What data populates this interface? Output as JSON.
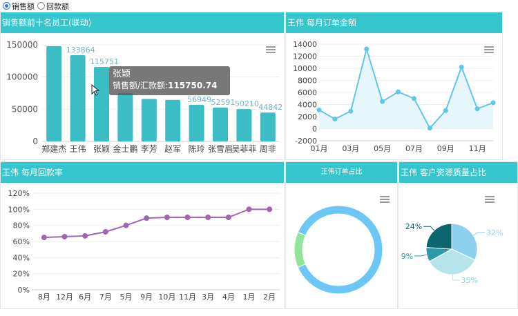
{
  "radios": [
    {
      "label": "销售额",
      "selected": true
    },
    {
      "label": "回款额",
      "selected": false
    }
  ],
  "panels": {
    "top_employees": {
      "title": "销售额前十名员工(联动)"
    },
    "monthly_orders": {
      "title": "王伟 每月订单金额"
    },
    "monthly_collection": {
      "title": "王伟 每月回款率"
    },
    "order_share": {
      "title": "王伟订单占比"
    },
    "customer_quality": {
      "title": "王伟 客户资源质量占比"
    }
  },
  "tooltip": {
    "name": "张颖",
    "label": "销售额/汇款额:",
    "value": "115750.74"
  },
  "icons": {
    "menu": "hamburger-menu-icon",
    "cursor": "mouse-pointer-icon"
  },
  "colors": {
    "header": "#34c6cc",
    "bar": "#3cbcc4",
    "line": "#5fc8e8",
    "rate": "#a066b0"
  },
  "chart_data": [
    {
      "type": "bar",
      "categories": [
        "郑建杰",
        "王伟",
        "张颖",
        "金士鹏",
        "李芳",
        "赵军",
        "陈玲",
        "张雪眉",
        "吴菲菲",
        "周非"
      ],
      "values": [
        148000,
        133864,
        115751,
        75000,
        66000,
        64500,
        56949,
        52591,
        50210,
        44842
      ],
      "data_labels": [
        "",
        "133864",
        "115751",
        "",
        "",
        "",
        "56949",
        "52591",
        "50210",
        "44842"
      ],
      "y_ticks": [
        "150000",
        "100000",
        "50000",
        "0"
      ],
      "ylim": [
        0,
        150000
      ]
    },
    {
      "type": "area",
      "x": [
        "01月",
        "02月",
        "03月",
        "04月",
        "05月",
        "06月",
        "07月",
        "08月",
        "09月",
        "10月",
        "11月",
        "12月"
      ],
      "x_tick_labels": [
        "01月",
        "03月",
        "05月",
        "07月",
        "09月",
        "11月"
      ],
      "values": [
        3100,
        1600,
        2900,
        13200,
        4500,
        6100,
        5000,
        100,
        3000,
        10200,
        3300,
        4300
      ],
      "y_ticks": [
        "14000",
        "12000",
        "10000",
        "8000",
        "6000",
        "4000",
        "2000",
        "0",
        "-2000"
      ],
      "ylim": [
        -2000,
        14000
      ]
    },
    {
      "type": "line",
      "categories": [
        "8月",
        "12月",
        "6月",
        "7月",
        "5月",
        "9月",
        "10月",
        "11月",
        "3月",
        "4月",
        "1月",
        "2月"
      ],
      "values": [
        65,
        66,
        67,
        72,
        80,
        89,
        90,
        90,
        90,
        90,
        100,
        100
      ],
      "y_ticks": [
        "120%",
        "100%",
        "80%",
        "60%",
        "40%",
        "20%",
        "0%"
      ],
      "ylim": [
        0,
        120
      ]
    },
    {
      "type": "pie",
      "donut": true,
      "slices": [
        {
          "value": 87,
          "color": "#6cc6f6"
        },
        {
          "value": 13,
          "color": "#90e59a"
        }
      ]
    },
    {
      "type": "pie",
      "slices": [
        {
          "label": "32%",
          "value": 32,
          "color": "#8cd0ee"
        },
        {
          "label": "35%",
          "value": 35,
          "color": "#b6e4ec"
        },
        {
          "label": "9%",
          "value": 9,
          "color": "#2e98a8"
        },
        {
          "label": "24%",
          "value": 24,
          "color": "#0b6670"
        }
      ]
    }
  ]
}
